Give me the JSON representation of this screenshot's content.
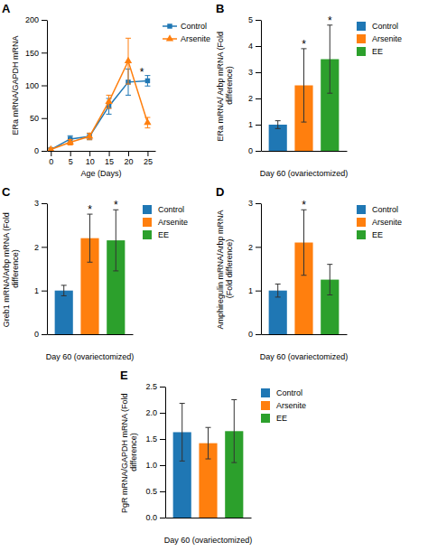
{
  "chart_data": [
    {
      "type": "line",
      "title": "A",
      "x": [
        0,
        5,
        10,
        15,
        20,
        25
      ],
      "xlabel": "Age (Days)",
      "ylabel": "ERa mRNA/GAPDH mRNA",
      "xlim": [
        -1,
        27
      ],
      "xticks": [
        0,
        5,
        10,
        15,
        20,
        25
      ],
      "ylim": [
        0,
        200
      ],
      "yticks": [
        0,
        50,
        100,
        150,
        200
      ],
      "series": [
        {
          "name": "Control",
          "marker": "square",
          "values": [
            2,
            18,
            22,
            68,
            105,
            107
          ],
          "errors": [
            2,
            5,
            5,
            12,
            20,
            8
          ]
        },
        {
          "name": "Arsenite",
          "marker": "triangle",
          "values": [
            2,
            13,
            22,
            75,
            137,
            43
          ],
          "errors": [
            2,
            4,
            5,
            10,
            35,
            8
          ]
        }
      ],
      "annotations": [
        {
          "text": "*",
          "x": 23.5,
          "y": 115
        }
      ],
      "legend": "right"
    },
    {
      "type": "bar",
      "title": "B",
      "categories": [
        "Control",
        "Arsenite",
        "EE"
      ],
      "values": [
        1.0,
        2.5,
        3.5
      ],
      "errors": [
        0.15,
        1.4,
        1.3
      ],
      "xlabel": "Day 60 (ovariectomized)",
      "ylabel": "ERa mRNA/ Arbp mRNA (Fold difference)",
      "ylim": [
        0,
        5
      ],
      "yticks": [
        0,
        1,
        2,
        3,
        4,
        5
      ],
      "tick_labels": "y",
      "legend": "right",
      "annotations": [
        {
          "text": "*",
          "x": "Arsenite"
        },
        {
          "text": "*",
          "x": "EE"
        }
      ]
    },
    {
      "type": "bar",
      "title": "C",
      "categories": [
        "Control",
        "Arsenite",
        "EE"
      ],
      "values": [
        1.0,
        2.2,
        2.15
      ],
      "errors": [
        0.12,
        0.55,
        0.7
      ],
      "xlabel": "Day 60 (ovariectomized)",
      "ylabel": "Greb1 mRNA/Arbp mRNA (Fold difference)",
      "ylim": [
        0,
        3
      ],
      "yticks": [
        0,
        1,
        2,
        3
      ],
      "tick_labels": "y",
      "legend": "right",
      "annotations": [
        {
          "text": "*",
          "x": "Arsenite"
        },
        {
          "text": "*",
          "x": "EE"
        }
      ]
    },
    {
      "type": "bar",
      "title": "D",
      "categories": [
        "Control",
        "Arsenite",
        "EE"
      ],
      "values": [
        1.0,
        2.1,
        1.25
      ],
      "errors": [
        0.15,
        0.75,
        0.35
      ],
      "xlabel": "Day 60 (ovariectomized)",
      "ylabel": "Amphiregulin mRNA/Arbp mRNA (Fold difference)",
      "ylim": [
        0,
        3
      ],
      "yticks": [
        0,
        1,
        2,
        3
      ],
      "tick_labels": "y",
      "legend": "right",
      "annotations": [
        {
          "text": "*",
          "x": "Arsenite"
        }
      ]
    },
    {
      "type": "bar",
      "title": "E",
      "categories": [
        "Control",
        "Arsenite",
        "EE"
      ],
      "values": [
        1.63,
        1.42,
        1.65
      ],
      "errors": [
        0.55,
        0.3,
        0.6
      ],
      "xlabel": "Day 60 (ovariectomized)",
      "ylabel": "PgR mRNA/GAPDH mRNA (Fold difference)",
      "ylim": [
        0,
        2.5
      ],
      "yticks": [
        {
          "value": 0,
          "label": "0.0"
        },
        0.5,
        {
          "value": 1,
          "label": "1.0"
        },
        1.5,
        {
          "value": 2,
          "label": "2.0"
        },
        2.5
      ],
      "tick_labels": "y",
      "legend": "right"
    }
  ]
}
